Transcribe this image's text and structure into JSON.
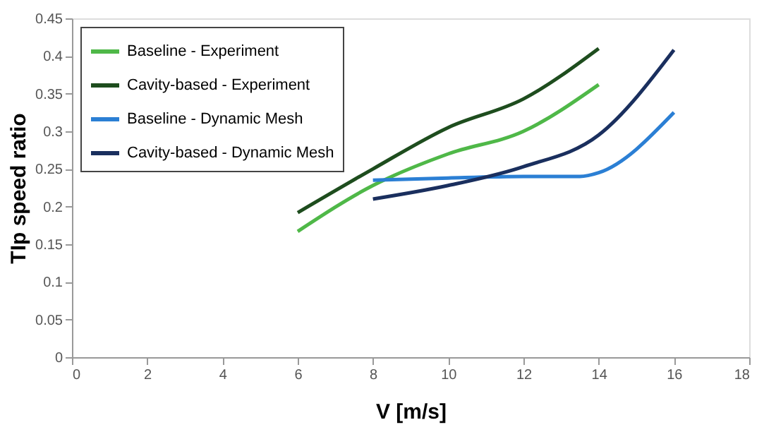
{
  "chart_data": {
    "type": "line",
    "xlabel": "V [m/s]",
    "ylabel": "TIp speed ratio",
    "xlim": [
      0,
      18
    ],
    "xticks": [
      0,
      2,
      4,
      6,
      8,
      10,
      12,
      14,
      16,
      18
    ],
    "ylim": [
      0,
      0.45
    ],
    "yticks": [
      0,
      0.05,
      0.1,
      0.15,
      0.2,
      0.25,
      0.3,
      0.35,
      0.4,
      0.45
    ],
    "grid": false,
    "legend": "top left",
    "marker": "none",
    "line_style": "solid",
    "series": [
      {
        "name": "Baseline - Experiment",
        "color": "#4fb848",
        "x": [
          6,
          8,
          10,
          12,
          14
        ],
        "values": [
          0.167,
          0.228,
          0.27,
          0.3,
          0.362
        ]
      },
      {
        "name": "Cavity-based - Experiment",
        "color": "#1e4d1e",
        "x": [
          6,
          8,
          10,
          12,
          14
        ],
        "values": [
          0.192,
          0.25,
          0.305,
          0.343,
          0.41
        ]
      },
      {
        "name": "Baseline - Dynamic Mesh",
        "color": "#2b7fd4",
        "x": [
          8,
          10,
          12,
          13.5,
          14,
          16
        ],
        "values": [
          0.235,
          0.238,
          0.24,
          0.24,
          0.245,
          0.325
        ]
      },
      {
        "name": "Cavity-based - Dynamic Mesh",
        "color": "#1a2f5e",
        "x": [
          8,
          10,
          12,
          14,
          16
        ],
        "values": [
          0.21,
          0.228,
          0.253,
          0.295,
          0.408
        ]
      }
    ]
  }
}
